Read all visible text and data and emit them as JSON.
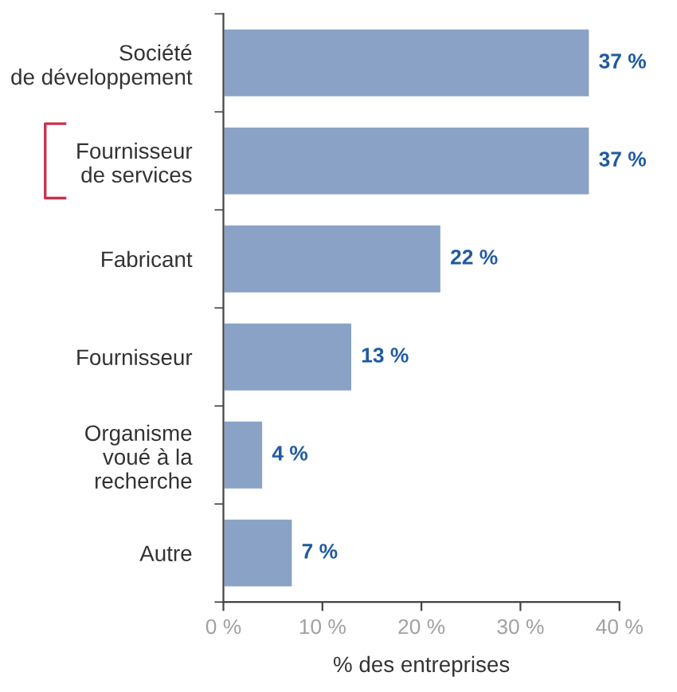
{
  "chart_data": {
    "type": "bar",
    "orientation": "horizontal",
    "xlabel": "% des entreprises",
    "categories": [
      "Société\nde développement",
      "Fournisseur\nde services",
      "Fabricant",
      "Fournisseur",
      "Organisme\nvoué à la\nrecherche",
      "Autre"
    ],
    "values": [
      37,
      37,
      22,
      13,
      4,
      7
    ],
    "value_labels": [
      "37 %",
      "37 %",
      "22 %",
      "13 %",
      "4 %",
      "7 %"
    ],
    "color": "#8aa2c6",
    "xlim": [
      0,
      40
    ],
    "xticks": [
      {
        "value": 0,
        "label": "0 %"
      },
      {
        "value": 10,
        "label": "10 %"
      },
      {
        "value": 20,
        "label": "20 %"
      },
      {
        "value": 30,
        "label": "30 %"
      },
      {
        "value": 40,
        "label": "40 %"
      }
    ],
    "grid": false
  }
}
